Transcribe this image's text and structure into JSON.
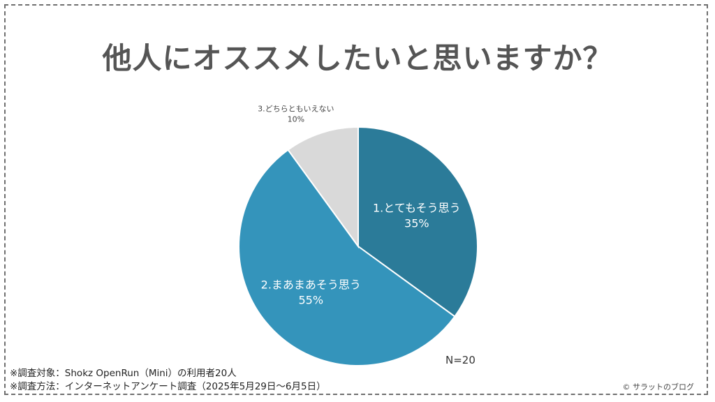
{
  "title": "他人にオススメしたいと思いますか？",
  "sample_size": "N=20",
  "notes": [
    "※調査対象：Shokz OpenRun（Mini）の利用者20人",
    "※調査方法：インターネットアンケート調査（2025年5月29日～6月5日）"
  ],
  "credit": "© サラットのブログ",
  "chart_data": {
    "type": "pie",
    "title": "他人にオススメしたいと思いますか？",
    "slices": [
      {
        "label": "1.とてもそう思う",
        "value": 35,
        "value_label": "35%",
        "color": "#2b7b99"
      },
      {
        "label": "2.まあまあそう思う",
        "value": 55,
        "value_label": "55%",
        "color": "#3494bb"
      },
      {
        "label": "3.どちらともいえない",
        "value": 10,
        "value_label": "10%",
        "color": "#d9d9d9"
      }
    ]
  }
}
